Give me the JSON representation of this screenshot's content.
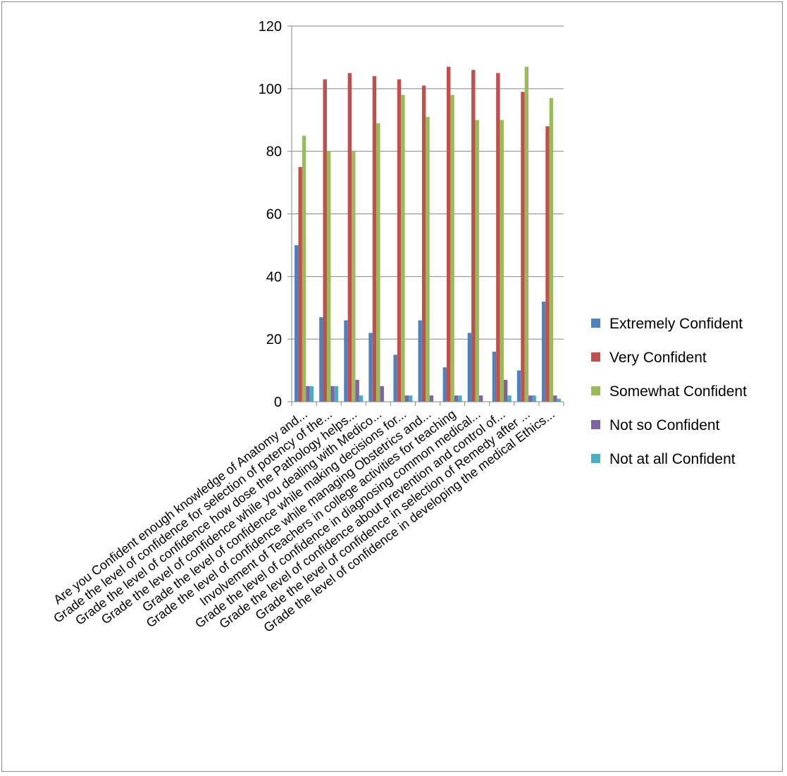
{
  "chart_data": {
    "type": "bar",
    "title": "",
    "xlabel": "",
    "ylabel": "",
    "ylim": [
      0,
      120
    ],
    "yticks": [
      0,
      20,
      40,
      60,
      80,
      100,
      120
    ],
    "grid": "horizontal",
    "legend_position": "right",
    "categories": [
      "Are you Confident enough knowledge of Anatomy and...",
      "Grade the level of confidence for selection of potency of the...",
      "Grade the level of confidence how dose the Pathology helps...",
      "Grade the level of confidence while you dealing with Medico...",
      "Grade the level of confidence while making decisions for...",
      "Grade the level of confidence while managing Obstetrics and...",
      "Involvement of Teachers in college activities for teaching",
      "Grade the level of confidence in diagnosing common medical...",
      "Grade the level of confidence about prevention and control of...",
      "Grade the level of confidence in selection of Remedy after ...",
      "Grade the level of confidence in developing the medical Ethics..."
    ],
    "series": [
      {
        "name": "Extremely Confident",
        "color": "#4F81BD",
        "values": [
          50,
          27,
          26,
          22,
          15,
          26,
          11,
          22,
          16,
          10,
          32
        ]
      },
      {
        "name": "Very Confident",
        "color": "#C0504D",
        "values": [
          75,
          103,
          105,
          104,
          103,
          101,
          107,
          106,
          105,
          99,
          88
        ]
      },
      {
        "name": "Somewhat Confident",
        "color": "#9BBB59",
        "values": [
          85,
          80,
          80,
          89,
          98,
          91,
          98,
          90,
          90,
          107,
          97
        ]
      },
      {
        "name": "Not so Confident",
        "color": "#8064A2",
        "values": [
          5,
          5,
          7,
          5,
          2,
          2,
          2,
          2,
          7,
          2,
          2
        ]
      },
      {
        "name": "Not at all Confident",
        "color": "#4BACC6",
        "values": [
          5,
          5,
          2,
          0,
          2,
          0,
          2,
          0,
          2,
          2,
          1
        ]
      }
    ]
  }
}
